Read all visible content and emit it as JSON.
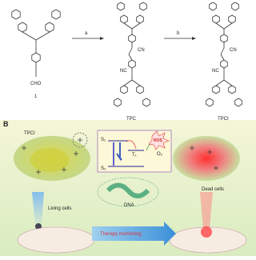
{
  "scheme": {
    "compound_1": "1",
    "cho": "CHO",
    "step_a": "a",
    "step_b": "b",
    "tpc": "TPC",
    "tpci": "TPCI",
    "cn_top": "CN",
    "nc_bottom": "NC",
    "cn_top_2": "CN",
    "nc_bottom_2": "NC"
  },
  "panel_b": {
    "label": "B",
    "tpci": "TPCI",
    "s1": "S₁",
    "t1": "T₁",
    "s0": "S₀",
    "o2": "O₂",
    "ros": "ROS",
    "living_cells": "Living cells",
    "dna": "DNA",
    "dead_cells": "Dead cells",
    "therapy_monitoring": "Therapy monitoring"
  }
}
